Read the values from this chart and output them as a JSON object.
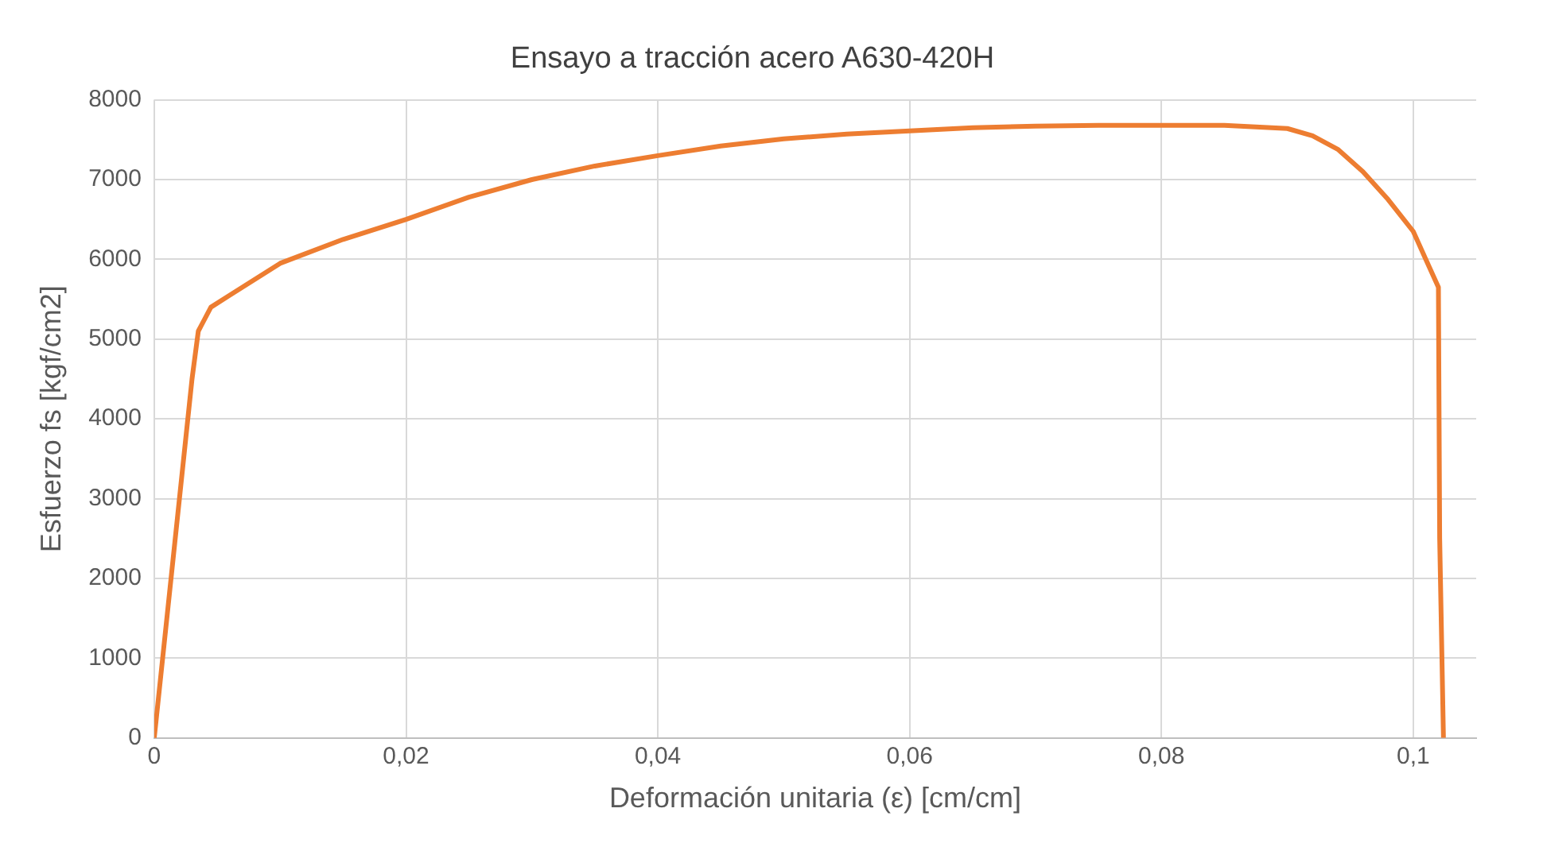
{
  "chart_data": {
    "type": "line",
    "title": "Ensayo a tracción acero A630-420H",
    "xlabel": "Deformación unitaria (ε) [cm/cm]",
    "ylabel": "Esfuerzo fs [kgf/cm2]",
    "x": [
      0,
      0.001,
      0.002,
      0.003,
      0.0035,
      0.0045,
      0.006,
      0.01,
      0.015,
      0.02,
      0.025,
      0.03,
      0.035,
      0.04,
      0.045,
      0.05,
      0.055,
      0.06,
      0.065,
      0.07,
      0.075,
      0.08,
      0.085,
      0.09,
      0.092,
      0.094,
      0.096,
      0.098,
      0.1,
      0.101,
      0.102,
      0.1021,
      0.1024
    ],
    "series": [
      {
        "color": "#ed7d31",
        "values": [
          0,
          1500,
          3000,
          4500,
          5100,
          5400,
          5550,
          5950,
          6250,
          6500,
          6780,
          7000,
          7170,
          7300,
          7420,
          7510,
          7570,
          7610,
          7650,
          7670,
          7680,
          7680,
          7680,
          7640,
          7550,
          7380,
          7100,
          6750,
          6350,
          6000,
          5650,
          2500,
          0
        ]
      }
    ],
    "xlim": [
      0,
      0.105
    ],
    "xticks": [
      0,
      {
        "value": 0.02,
        "label": "0,02"
      },
      {
        "value": 0.04,
        "label": "0,04"
      },
      {
        "value": 0.06,
        "label": "0,06"
      },
      {
        "value": 0.08,
        "label": "0,08"
      },
      {
        "value": 0.1,
        "label": "0,1"
      }
    ],
    "ylim": [
      0,
      8000
    ],
    "yticks": [
      0,
      1000,
      2000,
      3000,
      4000,
      5000,
      6000,
      7000,
      8000
    ],
    "grid": true,
    "marker": "none",
    "line_style": "solid"
  }
}
